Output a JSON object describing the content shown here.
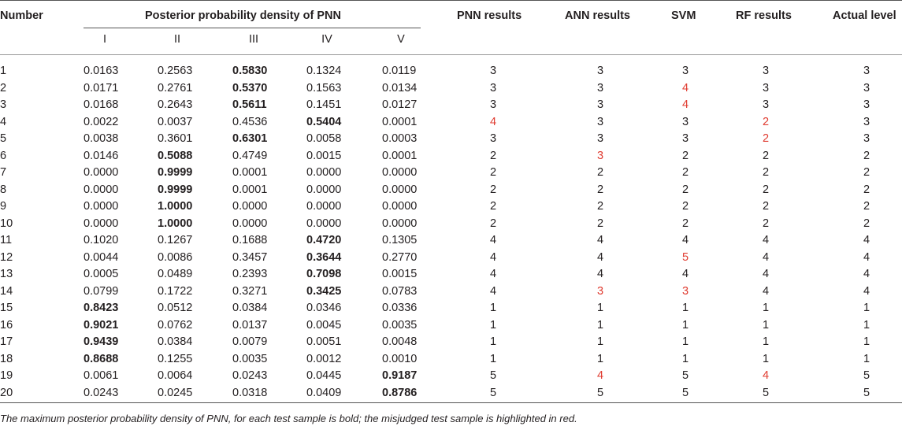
{
  "headers": {
    "number": "Number",
    "group": "Posterior probability density of PNN",
    "sub": [
      "I",
      "II",
      "III",
      "IV",
      "V"
    ],
    "pnn": "PNN results",
    "ann": "ANN results",
    "svm": "SVM",
    "rf": "RF results",
    "actual": "Actual level"
  },
  "rows": [
    {
      "n": "1",
      "p": [
        "0.0163",
        "0.2563",
        "0.5830",
        "0.1324",
        "0.0119"
      ],
      "b": 2,
      "r": [
        "3",
        "3",
        "3",
        "3",
        "3"
      ],
      "red": []
    },
    {
      "n": "2",
      "p": [
        "0.0171",
        "0.2761",
        "0.5370",
        "0.1563",
        "0.0134"
      ],
      "b": 2,
      "r": [
        "3",
        "3",
        "4",
        "3",
        "3"
      ],
      "red": [
        2
      ]
    },
    {
      "n": "3",
      "p": [
        "0.0168",
        "0.2643",
        "0.5611",
        "0.1451",
        "0.0127"
      ],
      "b": 2,
      "r": [
        "3",
        "3",
        "4",
        "3",
        "3"
      ],
      "red": [
        2
      ]
    },
    {
      "n": "4",
      "p": [
        "0.0022",
        "0.0037",
        "0.4536",
        "0.5404",
        "0.0001"
      ],
      "b": 3,
      "r": [
        "4",
        "3",
        "3",
        "2",
        "3"
      ],
      "red": [
        0,
        3
      ]
    },
    {
      "n": "5",
      "p": [
        "0.0038",
        "0.3601",
        "0.6301",
        "0.0058",
        "0.0003"
      ],
      "b": 2,
      "r": [
        "3",
        "3",
        "3",
        "2",
        "3"
      ],
      "red": [
        3
      ]
    },
    {
      "n": "6",
      "p": [
        "0.0146",
        "0.5088",
        "0.4749",
        "0.0015",
        "0.0001"
      ],
      "b": 1,
      "r": [
        "2",
        "3",
        "2",
        "2",
        "2"
      ],
      "red": [
        1
      ]
    },
    {
      "n": "7",
      "p": [
        "0.0000",
        "0.9999",
        "0.0001",
        "0.0000",
        "0.0000"
      ],
      "b": 1,
      "r": [
        "2",
        "2",
        "2",
        "2",
        "2"
      ],
      "red": []
    },
    {
      "n": "8",
      "p": [
        "0.0000",
        "0.9999",
        "0.0001",
        "0.0000",
        "0.0000"
      ],
      "b": 1,
      "r": [
        "2",
        "2",
        "2",
        "2",
        "2"
      ],
      "red": []
    },
    {
      "n": "9",
      "p": [
        "0.0000",
        "1.0000",
        "0.0000",
        "0.0000",
        "0.0000"
      ],
      "b": 1,
      "r": [
        "2",
        "2",
        "2",
        "2",
        "2"
      ],
      "red": []
    },
    {
      "n": "10",
      "p": [
        "0.0000",
        "1.0000",
        "0.0000",
        "0.0000",
        "0.0000"
      ],
      "b": 1,
      "r": [
        "2",
        "2",
        "2",
        "2",
        "2"
      ],
      "red": []
    },
    {
      "n": "11",
      "p": [
        "0.1020",
        "0.1267",
        "0.1688",
        "0.4720",
        "0.1305"
      ],
      "b": 3,
      "r": [
        "4",
        "4",
        "4",
        "4",
        "4"
      ],
      "red": []
    },
    {
      "n": "12",
      "p": [
        "0.0044",
        "0.0086",
        "0.3457",
        "0.3644",
        "0.2770"
      ],
      "b": 3,
      "r": [
        "4",
        "4",
        "5",
        "4",
        "4"
      ],
      "red": [
        2
      ]
    },
    {
      "n": "13",
      "p": [
        "0.0005",
        "0.0489",
        "0.2393",
        "0.7098",
        "0.0015"
      ],
      "b": 3,
      "r": [
        "4",
        "4",
        "4",
        "4",
        "4"
      ],
      "red": []
    },
    {
      "n": "14",
      "p": [
        "0.0799",
        "0.1722",
        "0.3271",
        "0.3425",
        "0.0783"
      ],
      "b": 3,
      "r": [
        "4",
        "3",
        "3",
        "4",
        "4"
      ],
      "red": [
        1,
        2
      ]
    },
    {
      "n": "15",
      "p": [
        "0.8423",
        "0.0512",
        "0.0384",
        "0.0346",
        "0.0336"
      ],
      "b": 0,
      "r": [
        "1",
        "1",
        "1",
        "1",
        "1"
      ],
      "red": []
    },
    {
      "n": "16",
      "p": [
        "0.9021",
        "0.0762",
        "0.0137",
        "0.0045",
        "0.0035"
      ],
      "b": 0,
      "r": [
        "1",
        "1",
        "1",
        "1",
        "1"
      ],
      "red": []
    },
    {
      "n": "17",
      "p": [
        "0.9439",
        "0.0384",
        "0.0079",
        "0.0051",
        "0.0048"
      ],
      "b": 0,
      "r": [
        "1",
        "1",
        "1",
        "1",
        "1"
      ],
      "red": []
    },
    {
      "n": "18",
      "p": [
        "0.8688",
        "0.1255",
        "0.0035",
        "0.0012",
        "0.0010"
      ],
      "b": 0,
      "r": [
        "1",
        "1",
        "1",
        "1",
        "1"
      ],
      "red": []
    },
    {
      "n": "19",
      "p": [
        "0.0061",
        "0.0064",
        "0.0243",
        "0.0445",
        "0.9187"
      ],
      "b": 4,
      "r": [
        "5",
        "4",
        "5",
        "4",
        "5"
      ],
      "red": [
        1,
        3
      ]
    },
    {
      "n": "20",
      "p": [
        "0.0243",
        "0.0245",
        "0.0318",
        "0.0409",
        "0.8786"
      ],
      "b": 4,
      "r": [
        "5",
        "5",
        "5",
        "5",
        "5"
      ],
      "red": []
    }
  ],
  "footnote": "The maximum posterior probability density of PNN, for each test sample is bold; the misjudged test sample is highlighted in red.",
  "colors": {
    "text": "#231f20",
    "misjudged": "#e03c31"
  }
}
